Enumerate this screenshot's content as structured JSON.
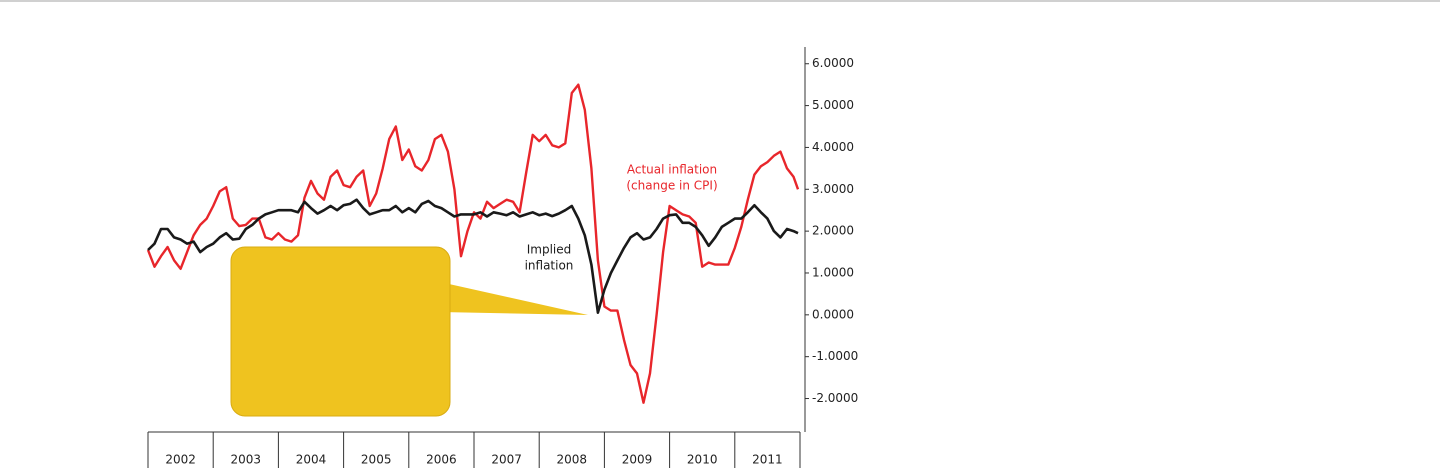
{
  "chart_data": {
    "type": "line",
    "x": [
      2002.0,
      2002.1,
      2002.2,
      2002.3,
      2002.4,
      2002.5,
      2002.6,
      2002.7,
      2002.8,
      2002.9,
      2003.0,
      2003.1,
      2003.2,
      2003.3,
      2003.4,
      2003.5,
      2003.6,
      2003.7,
      2003.8,
      2003.9,
      2004.0,
      2004.1,
      2004.2,
      2004.3,
      2004.4,
      2004.5,
      2004.6,
      2004.7,
      2004.8,
      2004.9,
      2005.0,
      2005.1,
      2005.2,
      2005.3,
      2005.4,
      2005.5,
      2005.6,
      2005.7,
      2005.8,
      2005.9,
      2006.0,
      2006.1,
      2006.2,
      2006.3,
      2006.4,
      2006.5,
      2006.6,
      2006.7,
      2006.8,
      2006.9,
      2007.0,
      2007.1,
      2007.2,
      2007.3,
      2007.4,
      2007.5,
      2007.6,
      2007.7,
      2007.8,
      2007.9,
      2008.0,
      2008.1,
      2008.2,
      2008.3,
      2008.4,
      2008.5,
      2008.6,
      2008.7,
      2008.8,
      2008.9,
      2009.0,
      2009.1,
      2009.2,
      2009.3,
      2009.4,
      2009.5,
      2009.6,
      2009.7,
      2009.8,
      2009.9,
      2010.0,
      2010.1,
      2010.2,
      2010.3,
      2010.4,
      2010.5,
      2010.6,
      2010.7,
      2010.8,
      2010.9,
      2011.0,
      2011.1,
      2011.2,
      2011.3,
      2011.4,
      2011.5,
      2011.6,
      2011.7,
      2011.8,
      2011.9,
      2011.97
    ],
    "series": [
      {
        "color": "#e8262b",
        "values": [
          1.55,
          1.15,
          1.4,
          1.62,
          1.3,
          1.1,
          1.5,
          1.9,
          2.15,
          2.3,
          2.6,
          2.95,
          3.05,
          2.3,
          2.12,
          2.15,
          2.3,
          2.3,
          1.85,
          1.8,
          1.95,
          1.8,
          1.75,
          1.9,
          2.8,
          3.2,
          2.9,
          2.75,
          3.3,
          3.45,
          3.1,
          3.05,
          3.3,
          3.45,
          2.6,
          2.9,
          3.5,
          4.2,
          4.5,
          3.7,
          3.95,
          3.55,
          3.45,
          3.7,
          4.2,
          4.3,
          3.9,
          3.0,
          1.4,
          2.0,
          2.45,
          2.3,
          2.7,
          2.55,
          2.65,
          2.75,
          2.7,
          2.45,
          3.4,
          4.3,
          4.15,
          4.3,
          4.05,
          4.0,
          4.1,
          5.3,
          5.5,
          4.9,
          3.5,
          1.3,
          0.2,
          0.1,
          0.1,
          -0.6,
          -1.2,
          -1.4,
          -2.1,
          -1.4,
          0.0,
          1.5,
          2.6,
          2.5,
          2.4,
          2.35,
          2.2,
          1.15,
          1.25,
          1.2,
          1.2,
          1.2,
          1.6,
          2.1,
          2.75,
          3.35,
          3.55,
          3.65,
          3.8,
          3.9,
          3.5,
          3.3,
          3.0
        ]
      },
      {
        "color": "#1a1a1a",
        "values": [
          1.55,
          1.7,
          2.05,
          2.05,
          1.85,
          1.8,
          1.7,
          1.75,
          1.5,
          1.62,
          1.7,
          1.85,
          1.95,
          1.8,
          1.82,
          2.05,
          2.15,
          2.3,
          2.4,
          2.45,
          2.5,
          2.5,
          2.5,
          2.45,
          2.7,
          2.55,
          2.42,
          2.5,
          2.6,
          2.5,
          2.62,
          2.65,
          2.75,
          2.55,
          2.4,
          2.45,
          2.5,
          2.5,
          2.6,
          2.45,
          2.55,
          2.45,
          2.65,
          2.72,
          2.6,
          2.55,
          2.45,
          2.35,
          2.4,
          2.4,
          2.4,
          2.45,
          2.35,
          2.45,
          2.42,
          2.38,
          2.45,
          2.35,
          2.4,
          2.45,
          2.38,
          2.42,
          2.36,
          2.42,
          2.5,
          2.6,
          2.3,
          1.9,
          1.2,
          0.05,
          0.6,
          1.0,
          1.3,
          1.6,
          1.85,
          1.95,
          1.8,
          1.85,
          2.05,
          2.3,
          2.38,
          2.4,
          2.2,
          2.2,
          2.1,
          1.9,
          1.65,
          1.85,
          2.1,
          2.2,
          2.3,
          2.3,
          2.45,
          2.62,
          2.45,
          2.3,
          2.0,
          1.85,
          2.05,
          2.0,
          1.95
        ]
      }
    ],
    "annotations": [
      {
        "lines": [
          "Actual inflation",
          "(change in CPI)"
        ],
        "color": "#e8262b"
      },
      {
        "lines": [
          "Implied",
          "inflation"
        ],
        "color": "#1a1a1a"
      }
    ],
    "xlim": [
      2002,
      2012
    ],
    "xticks": [
      2002,
      2003,
      2004,
      2005,
      2006,
      2007,
      2008,
      2009,
      2010,
      2011
    ],
    "ylim": [
      -2.8,
      6.4
    ],
    "yticks": [
      {
        "value": 6,
        "label": "6.0000"
      },
      {
        "value": 5,
        "label": "5.0000"
      },
      {
        "value": 4,
        "label": "4.0000"
      },
      {
        "value": 3,
        "label": "3.0000"
      },
      {
        "value": 2,
        "label": "2.0000"
      },
      {
        "value": 1,
        "label": "1.0000"
      },
      {
        "value": 0,
        "label": "0.0000"
      },
      {
        "value": -1,
        "label": "-1.0000"
      },
      {
        "value": -2,
        "label": "-2.0000"
      }
    ]
  }
}
